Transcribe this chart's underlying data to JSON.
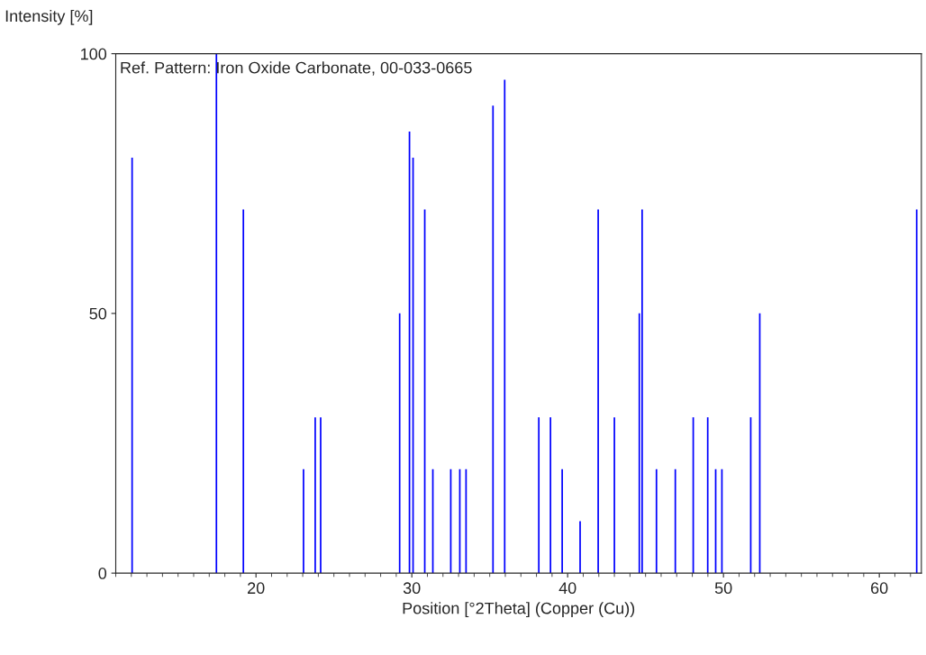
{
  "chart_data": {
    "type": "bar",
    "ylabel": "Intensity [%]",
    "xlabel": "Position [°2Theta] (Copper (Cu))",
    "annotations": [
      "Ref. Pattern: Iron Oxide Carbonate, 00-033-0665"
    ],
    "x": [
      12.05,
      17.46,
      19.19,
      23.05,
      23.8,
      24.15,
      29.22,
      29.85,
      30.08,
      30.83,
      31.35,
      32.5,
      33.08,
      33.48,
      35.21,
      35.96,
      38.15,
      38.9,
      39.65,
      40.8,
      41.96,
      43.0,
      44.6,
      44.78,
      45.7,
      46.91,
      48.06,
      48.99,
      49.5,
      49.9,
      51.75,
      52.33,
      62.4
    ],
    "values": [
      80,
      100,
      70,
      20,
      30,
      30,
      50,
      85,
      80,
      70,
      20,
      20,
      20,
      20,
      90,
      95,
      30,
      30,
      20,
      10,
      70,
      30,
      50,
      70,
      20,
      20,
      30,
      30,
      20,
      20,
      30,
      50,
      70
    ],
    "color": "#0000ff",
    "xlim": [
      11,
      62.7
    ],
    "xticks": [
      20,
      30,
      40,
      50,
      60
    ],
    "ylim": [
      0,
      100
    ],
    "yticks": [
      0,
      50,
      100
    ],
    "grid": false
  }
}
